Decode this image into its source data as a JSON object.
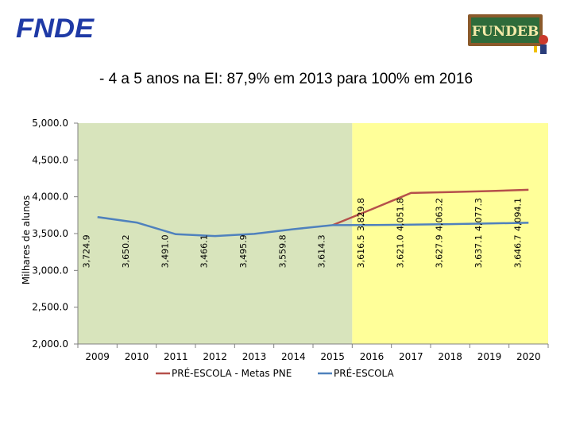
{
  "header": {
    "logo_left_text": "FNDE",
    "logo_right_text": "FUNDEB"
  },
  "chart_data": {
    "type": "line",
    "title": "- 4 a 5 anos na EI: 87,9% em 2013 para 100% em 2016",
    "ylabel": "Milhares de alunos",
    "xlabel": "",
    "ylim": [
      2000,
      5000
    ],
    "yticks": [
      "5,000.0",
      "4,500.0",
      "4,000.0",
      "3,500.0",
      "3,000.0",
      "2,500.0",
      "2,000.0"
    ],
    "ytick_values": [
      5000,
      4500,
      4000,
      3500,
      3000,
      2500,
      2000
    ],
    "categories": [
      "2009",
      "2010",
      "2011",
      "2012",
      "2013",
      "2014",
      "2015",
      "2016",
      "2017",
      "2018",
      "2019",
      "2020"
    ],
    "series": [
      {
        "name": "PRÉ-ESCOLA - Metas PNE",
        "color": "#b5504b",
        "values": [
          null,
          null,
          null,
          null,
          null,
          null,
          3614.3,
          3829.8,
          4051.8,
          4063.2,
          4077.3,
          4094.1
        ],
        "labels": [
          null,
          null,
          null,
          null,
          null,
          null,
          null,
          "3,829.8",
          "4,051.8",
          "4,063.2",
          "4,077.3",
          "4,094.1"
        ]
      },
      {
        "name": "PRÉ-ESCOLA",
        "color": "#4f81bd",
        "values": [
          3724.9,
          3650.2,
          3491.0,
          3466.1,
          3495.9,
          3559.8,
          3614.3,
          3616.5,
          3621.0,
          3627.9,
          3637.1,
          3646.7
        ],
        "labels": [
          "3,724.9",
          "3,650.2",
          "3,491.0",
          "3,466.1",
          "3,495.9",
          "3,559.8",
          "3,614.3",
          "3,616.5",
          "3,621.0",
          "3,627.9",
          "3,637.1",
          "3,646.7"
        ]
      }
    ],
    "shaded_regions": [
      {
        "from_index": 0,
        "to_index": 6.5,
        "color": "#d8e4bc"
      },
      {
        "from_index": 6.5,
        "to_index": 11,
        "color": "#ffff99"
      }
    ],
    "grid": false,
    "legend_position": "bottom"
  }
}
